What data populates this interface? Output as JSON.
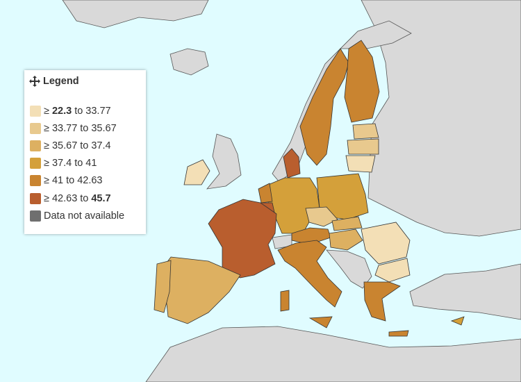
{
  "legend": {
    "title": "Legend",
    "items": [
      {
        "sign": "≥",
        "from": "22.3",
        "joiner": "to",
        "to": "33.77",
        "color": "#f3dfb6"
      },
      {
        "sign": "≥",
        "from": "33.77",
        "joiner": "to",
        "to": "35.67",
        "color": "#e8c98e"
      },
      {
        "sign": "≥",
        "from": "35.67",
        "joiner": "to",
        "to": "37.4",
        "color": "#ddb061"
      },
      {
        "sign": "≥",
        "from": "37.4",
        "joiner": "to",
        "to": "41",
        "color": "#d4a03a"
      },
      {
        "sign": "≥",
        "from": "41",
        "joiner": "to",
        "to": "42.63",
        "color": "#c98430"
      },
      {
        "sign": "≥",
        "from": "42.63",
        "joiner": "to",
        "to": "45.7",
        "color": "#b95e2e"
      }
    ],
    "missing": {
      "label": "Data not available",
      "color": "#6f6f6f"
    }
  }
}
